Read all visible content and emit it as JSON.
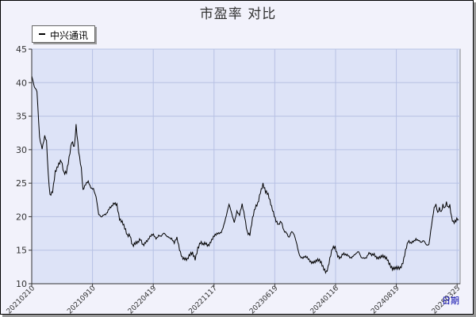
{
  "chart_data": {
    "type": "line",
    "title": "市盈率  对比",
    "xlabel": "日期",
    "ylabel": "",
    "ylim": [
      10,
      45
    ],
    "yticks": [
      10,
      15,
      20,
      25,
      30,
      35,
      40,
      45
    ],
    "xtick_labels": [
      "20210210",
      "20210910",
      "20220419",
      "20221117",
      "20230619",
      "20240116",
      "20240819",
      "20250325"
    ],
    "legend_position": "top-left",
    "grid": true,
    "colors": {
      "plot_bg": "#dde3f7",
      "grid": "#b7c1e4",
      "line": "#000000"
    },
    "series": [
      {
        "name": "中兴通讯",
        "anchors": [
          [
            0,
            41.0
          ],
          [
            3,
            39.0
          ],
          [
            6,
            38.5
          ],
          [
            9,
            32.0
          ],
          [
            12,
            30.5
          ],
          [
            15,
            32.0
          ],
          [
            17,
            31.0
          ],
          [
            19,
            26.0
          ],
          [
            21,
            23.0
          ],
          [
            24,
            24.0
          ],
          [
            27,
            27.0
          ],
          [
            30,
            27.5
          ],
          [
            34,
            28.0
          ],
          [
            37,
            26.5
          ],
          [
            40,
            27.0
          ],
          [
            43,
            29.0
          ],
          [
            46,
            31.0
          ],
          [
            49,
            30.0
          ],
          [
            51,
            33.5
          ],
          [
            54,
            30.0
          ],
          [
            57,
            27.5
          ],
          [
            59,
            24.0
          ],
          [
            62,
            24.5
          ],
          [
            65,
            25.0
          ],
          [
            68,
            24.5
          ],
          [
            71,
            24.5
          ],
          [
            74,
            23.0
          ],
          [
            77,
            20.0
          ],
          [
            80,
            19.7
          ],
          [
            83,
            20.5
          ],
          [
            86,
            20.8
          ],
          [
            89,
            21.2
          ],
          [
            92,
            21.2
          ],
          [
            95,
            21.8
          ],
          [
            98,
            22.0
          ],
          [
            101,
            20.0
          ],
          [
            104,
            19.2
          ],
          [
            107,
            18.0
          ],
          [
            110,
            17.0
          ],
          [
            113,
            17.5
          ],
          [
            116,
            16.0
          ],
          [
            119,
            16.0
          ],
          [
            122,
            15.8
          ],
          [
            125,
            16.5
          ],
          [
            128,
            16.0
          ],
          [
            131,
            16.5
          ],
          [
            134,
            16.5
          ],
          [
            137,
            16.8
          ],
          [
            140,
            17.2
          ],
          [
            143,
            17.0
          ],
          [
            146,
            17.5
          ],
          [
            149,
            17.0
          ],
          [
            152,
            17.2
          ],
          [
            155,
            17.0
          ],
          [
            158,
            17.2
          ],
          [
            161,
            17.0
          ],
          [
            164,
            16.0
          ],
          [
            167,
            16.5
          ],
          [
            170,
            15.0
          ],
          [
            173,
            14.2
          ],
          [
            176,
            14.0
          ],
          [
            179,
            13.5
          ],
          [
            182,
            14.0
          ],
          [
            185,
            14.5
          ],
          [
            188,
            14.0
          ],
          [
            191,
            15.5
          ],
          [
            194,
            16.0
          ],
          [
            197,
            15.5
          ],
          [
            200,
            16.0
          ],
          [
            203,
            16.0
          ],
          [
            206,
            16.5
          ],
          [
            209,
            16.8
          ],
          [
            212,
            17.0
          ],
          [
            215,
            17.5
          ],
          [
            218,
            18.0
          ],
          [
            221,
            19.0
          ],
          [
            224,
            20.0
          ],
          [
            227,
            21.5
          ],
          [
            230,
            20.5
          ],
          [
            233,
            19.5
          ],
          [
            236,
            21.0
          ],
          [
            239,
            20.0
          ],
          [
            242,
            21.5
          ],
          [
            245,
            20.0
          ],
          [
            248,
            18.0
          ],
          [
            251,
            17.5
          ],
          [
            254,
            19.5
          ],
          [
            257,
            21.0
          ],
          [
            260,
            22.0
          ],
          [
            263,
            24.0
          ],
          [
            266,
            25.0
          ],
          [
            269,
            23.5
          ],
          [
            272,
            23.0
          ],
          [
            275,
            22.0
          ],
          [
            278,
            21.0
          ],
          [
            281,
            19.5
          ],
          [
            284,
            18.5
          ],
          [
            287,
            19.0
          ],
          [
            290,
            18.0
          ],
          [
            293,
            18.0
          ],
          [
            296,
            17.0
          ],
          [
            299,
            17.5
          ],
          [
            302,
            17.0
          ],
          [
            305,
            16.0
          ],
          [
            307,
            15.0
          ],
          [
            309,
            14.3
          ],
          [
            312,
            13.8
          ],
          [
            315,
            13.7
          ],
          [
            318,
            13.6
          ],
          [
            321,
            13.5
          ],
          [
            324,
            13.5
          ],
          [
            327,
            13.3
          ],
          [
            330,
            13.2
          ],
          [
            333,
            13.0
          ],
          [
            336,
            12.5
          ],
          [
            339,
            12.0
          ],
          [
            341,
            12.5
          ],
          [
            343,
            13.5
          ],
          [
            346,
            15.0
          ],
          [
            349,
            15.5
          ],
          [
            352,
            14.5
          ],
          [
            355,
            14.0
          ],
          [
            358,
            14.2
          ],
          [
            361,
            14.0
          ],
          [
            364,
            14.3
          ],
          [
            367,
            14.2
          ],
          [
            370,
            14.3
          ],
          [
            373,
            14.2
          ],
          [
            376,
            14.5
          ],
          [
            379,
            14.0
          ],
          [
            382,
            14.2
          ],
          [
            385,
            14.0
          ],
          [
            388,
            14.3
          ],
          [
            391,
            14.0
          ],
          [
            394,
            14.5
          ],
          [
            397,
            14.2
          ],
          [
            400,
            14.0
          ],
          [
            403,
            13.8
          ],
          [
            406,
            13.7
          ],
          [
            409,
            13.8
          ],
          [
            412,
            13.2
          ],
          [
            415,
            12.3
          ],
          [
            418,
            12.0
          ],
          [
            421,
            12.1
          ],
          [
            424,
            12.5
          ],
          [
            427,
            13.5
          ],
          [
            430,
            15.0
          ],
          [
            433,
            16.0
          ],
          [
            436,
            15.8
          ],
          [
            439,
            16.5
          ],
          [
            442,
            17.0
          ],
          [
            445,
            16.5
          ],
          [
            448,
            15.8
          ],
          [
            451,
            16.2
          ],
          [
            454,
            16.0
          ],
          [
            457,
            16.2
          ],
          [
            459,
            18.0
          ],
          [
            461,
            19.5
          ],
          [
            463,
            21.0
          ],
          [
            465,
            21.5
          ],
          [
            467,
            20.5
          ],
          [
            469,
            21.5
          ],
          [
            471,
            21.0
          ],
          [
            473,
            22.0
          ],
          [
            475,
            21.2
          ],
          [
            477,
            21.8
          ],
          [
            479,
            21.0
          ],
          [
            481,
            21.5
          ],
          [
            483,
            20.0
          ],
          [
            485,
            19.5
          ],
          [
            487,
            19.6
          ],
          [
            489,
            19.7
          ],
          [
            491,
            19.6
          ]
        ]
      }
    ]
  }
}
